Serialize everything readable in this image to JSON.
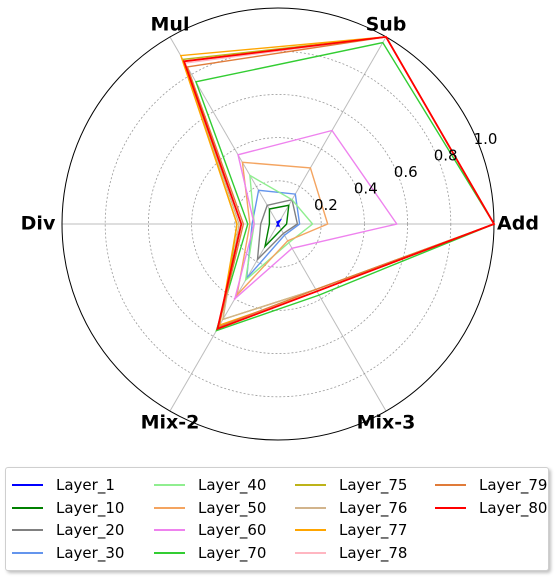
{
  "chart_data": {
    "type": "radar",
    "axes": [
      "Add",
      "Sub",
      "Mul",
      "Div",
      "Mix-2",
      "Mix-3"
    ],
    "rlim": [
      0,
      1.0
    ],
    "r_ticks": [
      "0.2",
      "0.4",
      "0.6",
      "0.8",
      "1.0"
    ],
    "r_tick_values": [
      0.2,
      0.4,
      0.6,
      0.8,
      1.0
    ],
    "grid": true,
    "legend_placement": "bottom",
    "series": [
      {
        "name": "Layer_1",
        "color": "#0000ff",
        "values": [
          0.0,
          0.02,
          0.01,
          0.0,
          0.01,
          0.01
        ]
      },
      {
        "name": "Layer_10",
        "color": "#008000",
        "values": [
          0.04,
          0.1,
          0.08,
          0.04,
          0.12,
          0.03
        ]
      },
      {
        "name": "Layer_20",
        "color": "#808080",
        "values": [
          0.09,
          0.13,
          0.1,
          0.08,
          0.19,
          0.05
        ]
      },
      {
        "name": "Layer_30",
        "color": "#6495ed",
        "values": [
          0.1,
          0.16,
          0.18,
          0.12,
          0.29,
          0.06
        ]
      },
      {
        "name": "Layer_40",
        "color": "#90ee90",
        "values": [
          0.16,
          0.13,
          0.26,
          0.11,
          0.3,
          0.1
        ]
      },
      {
        "name": "Layer_50",
        "color": "#f4a460",
        "values": [
          0.23,
          0.3,
          0.33,
          0.13,
          0.38,
          0.09
        ]
      },
      {
        "name": "Layer_60",
        "color": "#ee82ee",
        "values": [
          0.55,
          0.5,
          0.37,
          0.11,
          0.4,
          0.13
        ]
      },
      {
        "name": "Layer_70",
        "color": "#32cd32",
        "values": [
          1.0,
          0.97,
          0.76,
          0.14,
          0.57,
          0.38
        ]
      },
      {
        "name": "Layer_75",
        "color": "#bdb319",
        "values": [
          1.0,
          1.0,
          0.88,
          0.19,
          0.51,
          0.35
        ]
      },
      {
        "name": "Layer_76",
        "color": "#d2b48c",
        "values": [
          1.0,
          1.0,
          0.87,
          0.18,
          0.51,
          0.35
        ]
      },
      {
        "name": "Layer_77",
        "color": "#ffa500",
        "values": [
          1.0,
          1.0,
          0.9,
          0.19,
          0.54,
          0.36
        ]
      },
      {
        "name": "Layer_78",
        "color": "#ffb6c1",
        "values": [
          1.0,
          1.0,
          0.86,
          0.17,
          0.55,
          0.36
        ]
      },
      {
        "name": "Layer_79",
        "color": "#e07b39",
        "values": [
          1.0,
          1.0,
          0.84,
          0.16,
          0.55,
          0.35
        ]
      },
      {
        "name": "Layer_80",
        "color": "#ff0000",
        "values": [
          1.0,
          1.0,
          0.87,
          0.17,
          0.56,
          0.36
        ]
      }
    ]
  }
}
